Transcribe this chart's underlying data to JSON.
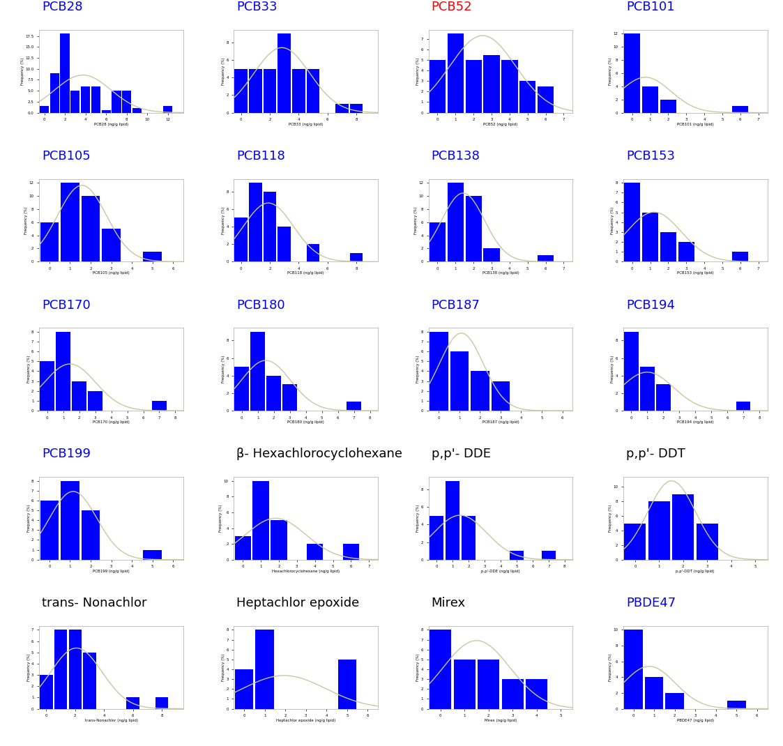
{
  "panels": [
    {
      "title": "PCB28",
      "title_color": "#0000FF",
      "bar_heights": [
        1.5,
        9,
        18,
        5,
        6,
        6,
        0.5,
        5,
        5,
        1,
        0,
        0,
        1.5
      ],
      "xlabel": "PCB28 (ng/g lipid)"
    },
    {
      "title": "PCB33",
      "title_color": "#0000FF",
      "bar_heights": [
        5,
        5,
        5,
        9,
        5,
        5,
        0,
        1,
        1
      ],
      "xlabel": "PCB33 (ng/g lipid)"
    },
    {
      "title": "PCB52",
      "title_color": "#FF0000",
      "bar_heights": [
        5,
        7.5,
        5,
        5.5,
        5,
        3,
        2.5
      ],
      "xlabel": "PCB52 (ng/g lipid)"
    },
    {
      "title": "PCB101",
      "title_color": "#0000FF",
      "bar_heights": [
        12,
        4,
        2,
        0,
        0,
        0,
        1
      ],
      "xlabel": "PCB101 (ng/g lipid)"
    },
    {
      "title": "PCB105",
      "title_color": "#0000FF",
      "bar_heights": [
        6,
        12,
        10,
        5,
        0,
        1.5
      ],
      "xlabel": "PCB105 (ng/g lipid)"
    },
    {
      "title": "PCB118",
      "title_color": "#0000FF",
      "bar_heights": [
        5,
        9,
        8,
        4,
        0,
        2,
        0,
        0,
        1
      ],
      "xlabel": "PCB118 (ng/g lipid)"
    },
    {
      "title": "PCB138",
      "title_color": "#0000FF",
      "bar_heights": [
        6,
        12,
        10,
        2,
        0,
        0,
        1
      ],
      "xlabel": "PCB138 (ng/g lipid)"
    },
    {
      "title": "PCB153",
      "title_color": "#0000FF",
      "bar_heights": [
        8,
        5,
        3,
        2,
        0,
        0,
        1
      ],
      "xlabel": "PCB153 (ng/g lipid)"
    },
    {
      "title": "PCB170",
      "title_color": "#0000FF",
      "bar_heights": [
        5,
        8,
        3,
        2,
        0,
        0,
        0,
        1
      ],
      "xlabel": "PCB170 (ng/g lipid)"
    },
    {
      "title": "PCB180",
      "title_color": "#0000FF",
      "bar_heights": [
        5,
        9,
        4,
        3,
        0,
        0,
        0,
        1
      ],
      "xlabel": "PCB180 (ng/g lipid)"
    },
    {
      "title": "PCB187",
      "title_color": "#0000FF",
      "bar_heights": [
        8,
        6,
        4,
        3,
        0,
        0
      ],
      "xlabel": "PCB187 (ng/g lipid)"
    },
    {
      "title": "PCB194",
      "title_color": "#0000FF",
      "bar_heights": [
        9,
        5,
        3,
        0,
        0,
        0,
        0,
        1
      ],
      "xlabel": "PCB194 (ng/g lipid)"
    },
    {
      "title": "PCB199",
      "title_color": "#0000FF",
      "bar_heights": [
        6,
        8,
        5,
        0,
        0,
        1
      ],
      "xlabel": "PCB199 (ng/g lipid)"
    },
    {
      "title": "β- Hexachlorocyclohexane",
      "title_color": "#000000",
      "bar_heights": [
        3,
        10,
        5,
        0,
        2,
        0,
        2
      ],
      "xlabel": "Hexachlorocyclohexane (ng/g lipid)"
    },
    {
      "title": "p,p'- DDE",
      "title_color": "#000000",
      "bar_heights": [
        5,
        9,
        5,
        0,
        0,
        1,
        0,
        1
      ],
      "xlabel": "p,p'-DDE (ng/g lipid)"
    },
    {
      "title": "p,p'- DDT",
      "title_color": "#000000",
      "bar_heights": [
        5,
        8,
        9,
        5,
        0
      ],
      "xlabel": "p,p'-DDT (ng/g lipid)"
    },
    {
      "title": "trans- Nonachlor",
      "title_color": "#000000",
      "bar_heights": [
        3,
        7,
        7,
        5,
        0,
        0,
        1,
        0,
        1
      ],
      "xlabel": "trans-Nonachlor (ng/g lipid)"
    },
    {
      "title": "Heptachlor epoxide",
      "title_color": "#000000",
      "bar_heights": [
        4,
        8,
        0,
        0,
        0,
        5
      ],
      "xlabel": "Heptachlor epoxide (ng/g lipid)"
    },
    {
      "title": "Mirex",
      "title_color": "#000000",
      "bar_heights": [
        8,
        5,
        5,
        3,
        3
      ],
      "xlabel": "Mirex (ng/g lipid)"
    },
    {
      "title": "PBDE47",
      "title_color": "#0000FF",
      "bar_heights": [
        10,
        4,
        2,
        0,
        0,
        1
      ],
      "xlabel": "PBDE47 (ng/g lipid)"
    }
  ],
  "bar_color": "#0000FF",
  "curve_color": "#C8C8A0",
  "background_color": "#FFFFFF",
  "grid_rows": 5,
  "grid_cols": 4
}
